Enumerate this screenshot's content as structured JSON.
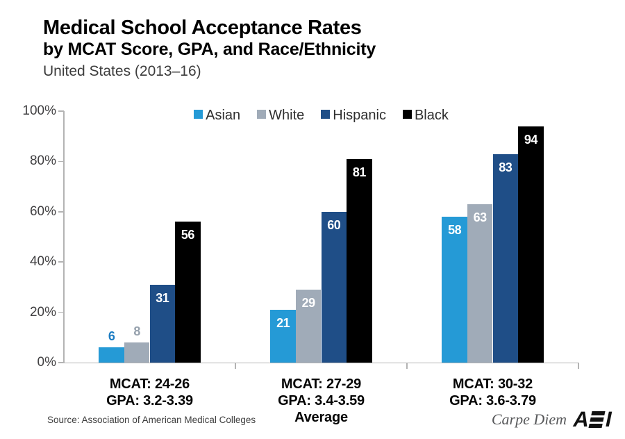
{
  "header": {
    "title_line1": "Medical School Acceptance Rates",
    "title_line2": "by MCAT Score, GPA, and Race/Ethnicity",
    "subtitle": "United States (2013–16)"
  },
  "chart_data": {
    "type": "bar",
    "title": "Medical School Acceptance Rates by MCAT Score, GPA, and Race/Ethnicity",
    "subtitle": "United States (2013–16)",
    "ylim": [
      0,
      100
    ],
    "ytick_values": [
      0,
      20,
      40,
      60,
      80,
      100
    ],
    "ytick_labels": [
      "0%",
      "20%",
      "40%",
      "60%",
      "80%",
      "100%"
    ],
    "grid": false,
    "legend_position": "top-center",
    "axis_color": "#B3B3B3",
    "tick_label_color": "#414042",
    "categories": [
      {
        "lines": [
          "MCAT: 24-26",
          "GPA: 3.2-3.39"
        ]
      },
      {
        "lines": [
          "MCAT: 27-29",
          "GPA: 3.4-3.59",
          "Average"
        ]
      },
      {
        "lines": [
          "MCAT: 30-32",
          "GPA: 3.6-3.79"
        ]
      }
    ],
    "series": [
      {
        "name": "Asian",
        "color": "#259AD6",
        "label_color": "#1C7CC2",
        "values": [
          6,
          21,
          58
        ]
      },
      {
        "name": "White",
        "color": "#A0ABB8",
        "label_color": "#97A2AE",
        "values": [
          8,
          29,
          63
        ]
      },
      {
        "name": "Hispanic",
        "color": "#1F4E87",
        "label_color": "#FFFFFF",
        "values": [
          31,
          60,
          83
        ]
      },
      {
        "name": "Black",
        "color": "#000000",
        "label_color": "#FFFFFF",
        "values": [
          56,
          81,
          94
        ]
      }
    ]
  },
  "footer": {
    "source": "Source: Association of American Medical Colleges",
    "tagline": "Carpe Diem",
    "logo_name": "AEI",
    "logo_letters": [
      "A",
      "I"
    ]
  }
}
